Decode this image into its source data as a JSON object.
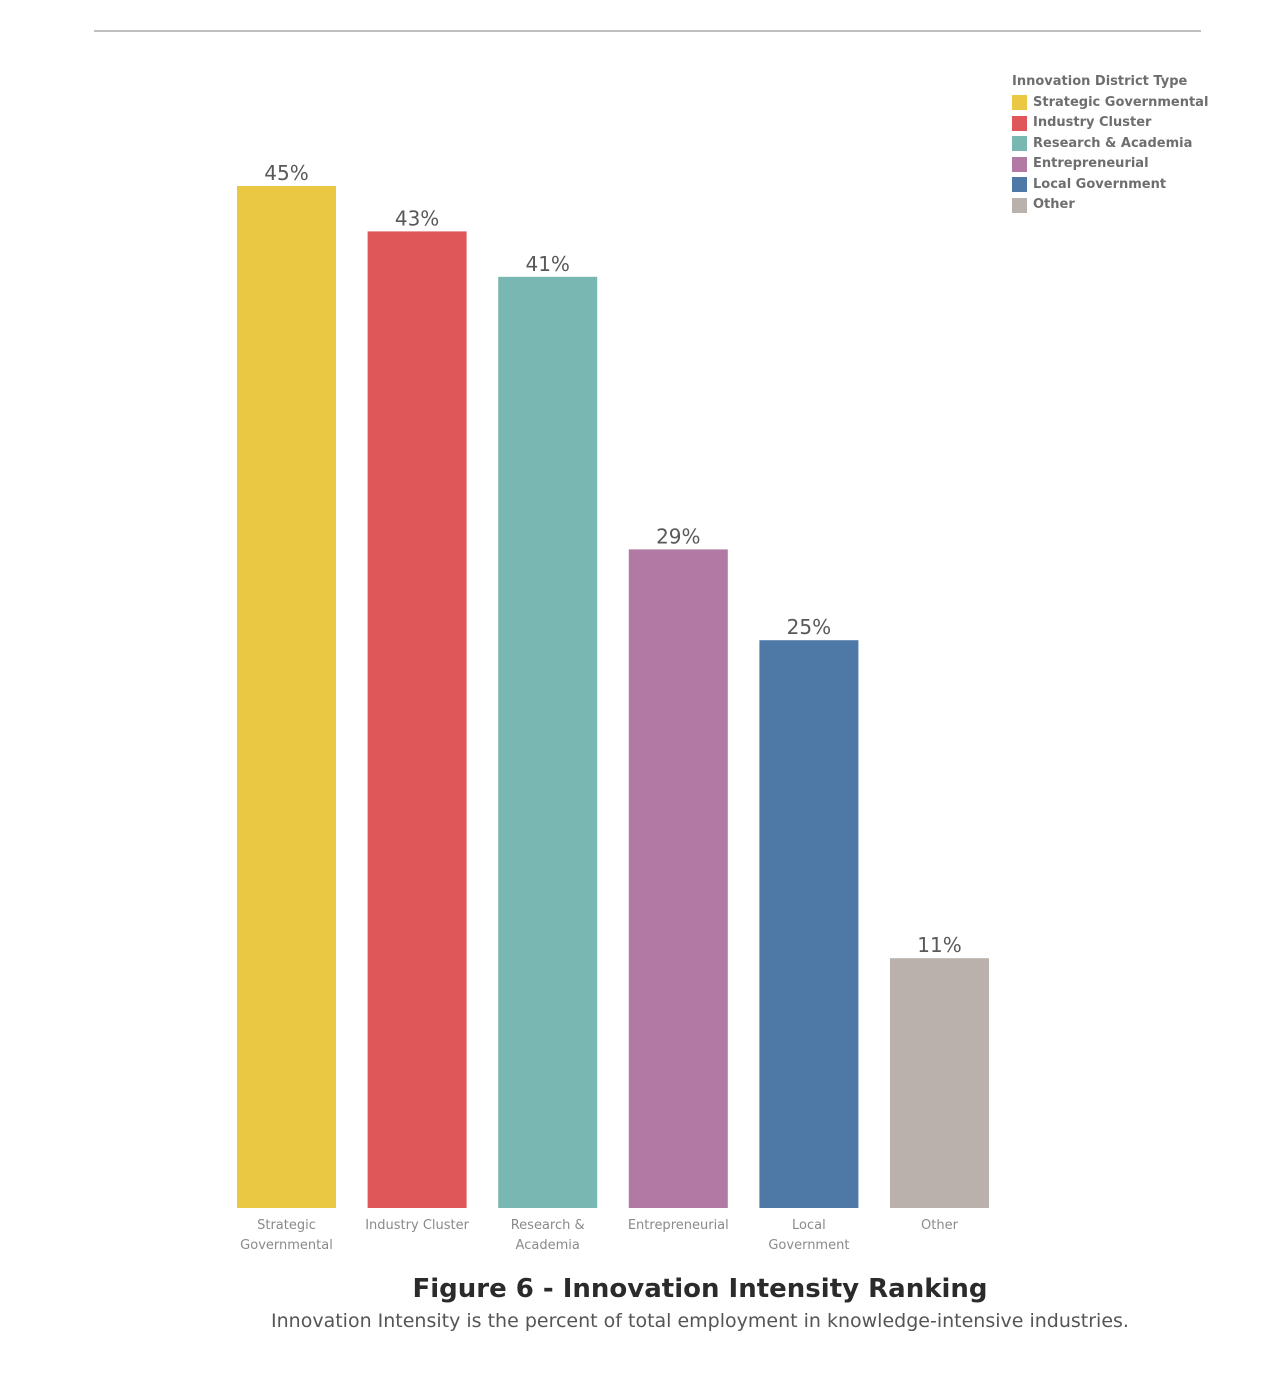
{
  "chart_data": {
    "type": "bar",
    "title": "Figure 6 - Innovation Intensity Ranking",
    "subtitle": "Innovation Intensity is the percent of total employment in knowledge-intensive industries.",
    "categories": [
      [
        "Strategic",
        "Governmental"
      ],
      [
        "Industry Cluster"
      ],
      [
        "Research &",
        "Academia"
      ],
      [
        "Entrepreneurial"
      ],
      [
        "Local",
        "Government"
      ],
      [
        "Other"
      ]
    ],
    "values": [
      45,
      43,
      41,
      29,
      25,
      11
    ],
    "value_labels": [
      "45%",
      "43%",
      "41%",
      "29%",
      "25%",
      "11%"
    ],
    "colors": [
      "#EBC843",
      "#E05759",
      "#79B8B2",
      "#B179A3",
      "#4E79A7",
      "#BAB0AC"
    ],
    "ylim": [
      0,
      45
    ],
    "grid": false,
    "legend_position": "top-right"
  },
  "legend": {
    "title": "Innovation District Type",
    "items": [
      {
        "label": "Strategic Governmental",
        "color": "#EBC843"
      },
      {
        "label": "Industry Cluster",
        "color": "#E05759"
      },
      {
        "label": "Research & Academia",
        "color": "#79B8B2"
      },
      {
        "label": "Entrepreneurial",
        "color": "#B179A3"
      },
      {
        "label": "Local Government",
        "color": "#4E79A7"
      },
      {
        "label": "Other",
        "color": "#BAB0AC"
      }
    ]
  }
}
